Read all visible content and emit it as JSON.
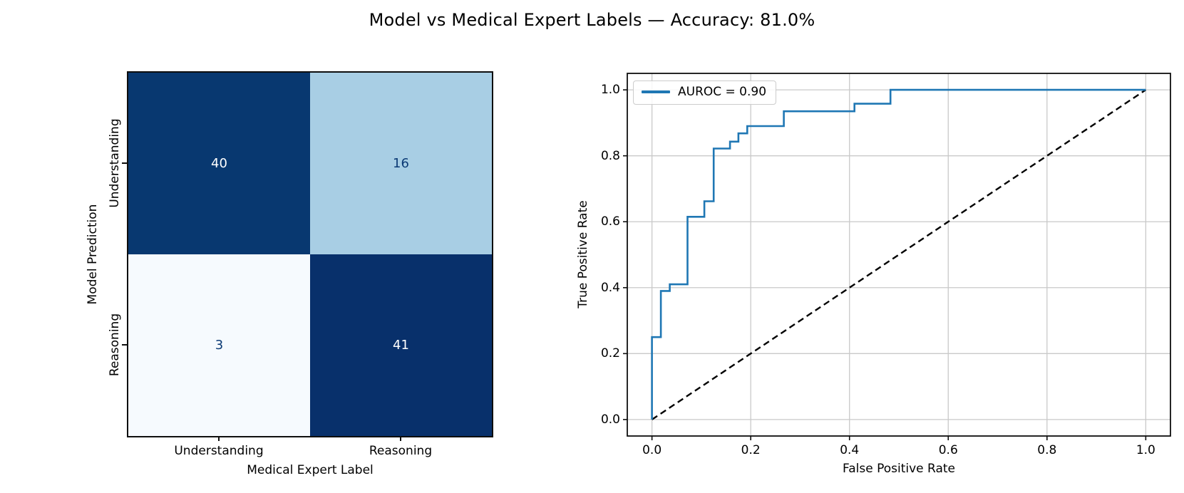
{
  "figure": {
    "title": "Model vs Medical Expert Labels — Accuracy: 81.0%",
    "accuracy_pct": 81.0,
    "background": "#ffffff"
  },
  "chart_data": [
    {
      "type": "heatmap",
      "name": "confusion-matrix",
      "xlabel": "Medical Expert Label",
      "ylabel": "Model Prediction",
      "x_categories": [
        "Understanding",
        "Reasoning"
      ],
      "y_categories": [
        "Understanding",
        "Reasoning"
      ],
      "values": [
        [
          40,
          16
        ],
        [
          3,
          41
        ]
      ],
      "cell_colors": [
        [
          "#083870",
          "#a8cee4"
        ],
        [
          "#f6fafe",
          "#08306b"
        ]
      ],
      "value_colors": [
        [
          "#ffffff",
          "#0b3a75"
        ],
        [
          "#0b3a75",
          "#ffffff"
        ]
      ],
      "colormap": "Blues",
      "frame_color": "#0e0e0e"
    },
    {
      "type": "line",
      "name": "roc-curve",
      "xlabel": "False Positive Rate",
      "ylabel": "True Positive Rate",
      "xlim": [
        -0.05,
        1.05
      ],
      "ylim": [
        -0.05,
        1.05
      ],
      "x_ticks": [
        "0.0",
        "0.2",
        "0.4",
        "0.6",
        "0.8",
        "1.0"
      ],
      "y_ticks": [
        "0.0",
        "0.2",
        "0.4",
        "0.6",
        "0.8",
        "1.0"
      ],
      "grid": true,
      "grid_color": "#c9c9c9",
      "auroc": 0.9,
      "legend": {
        "position": "upper-left",
        "entries": [
          {
            "label": "AUROC = 0.90",
            "color": "#1f77b4"
          }
        ]
      },
      "series": [
        {
          "name": "roc",
          "label": "AUROC = 0.90",
          "color": "#1f77b4",
          "style": "solid",
          "points": [
            [
              0.0,
              0.0
            ],
            [
              0.0,
              0.25
            ],
            [
              0.018,
              0.25
            ],
            [
              0.018,
              0.39
            ],
            [
              0.036,
              0.39
            ],
            [
              0.036,
              0.41
            ],
            [
              0.072,
              0.41
            ],
            [
              0.072,
              0.615
            ],
            [
              0.106,
              0.615
            ],
            [
              0.106,
              0.662
            ],
            [
              0.125,
              0.662
            ],
            [
              0.125,
              0.822
            ],
            [
              0.158,
              0.822
            ],
            [
              0.158,
              0.843
            ],
            [
              0.175,
              0.843
            ],
            [
              0.175,
              0.868
            ],
            [
              0.193,
              0.868
            ],
            [
              0.193,
              0.89
            ],
            [
              0.267,
              0.89
            ],
            [
              0.267,
              0.935
            ],
            [
              0.41,
              0.935
            ],
            [
              0.41,
              0.958
            ],
            [
              0.483,
              0.958
            ],
            [
              0.483,
              1.0
            ],
            [
              1.0,
              1.0
            ]
          ]
        },
        {
          "name": "chance-diagonal",
          "label": "",
          "color": "#000000",
          "style": "dashed",
          "points": [
            [
              0,
              0
            ],
            [
              1,
              1
            ]
          ]
        }
      ]
    }
  ]
}
